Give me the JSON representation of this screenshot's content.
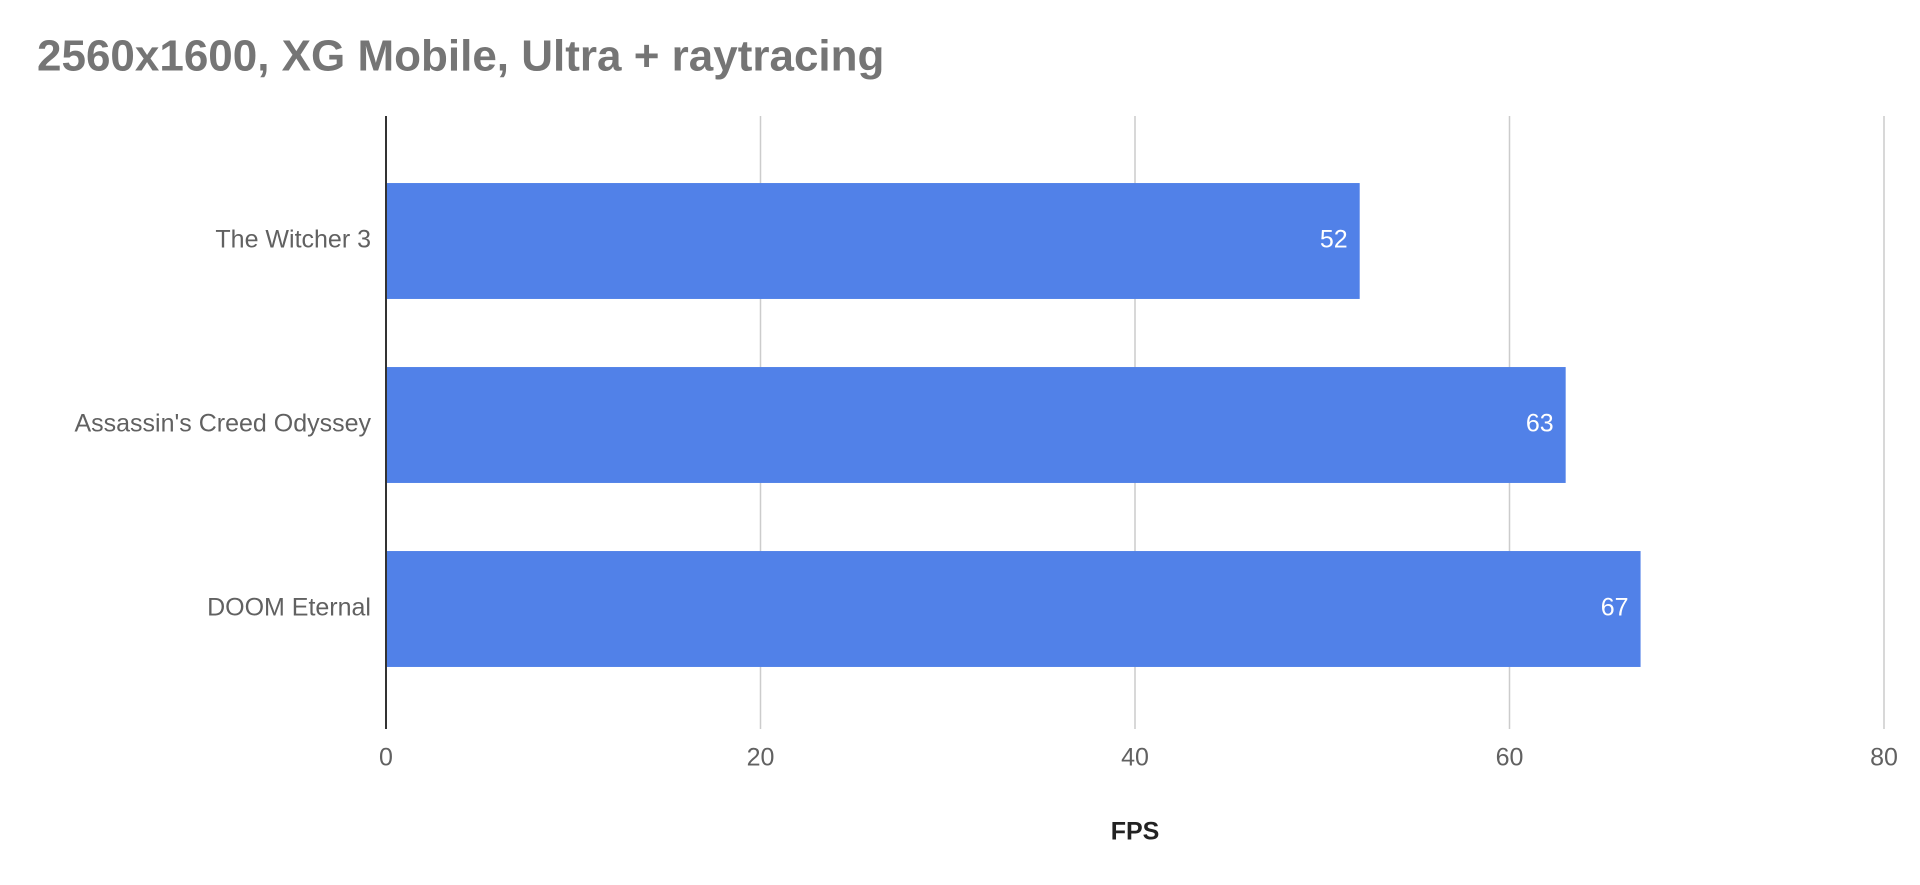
{
  "chart_data": {
    "type": "bar",
    "orientation": "horizontal",
    "title": "2560x1600, XG Mobile, Ultra + raytracing",
    "x_label": "FPS",
    "categories": [
      "The Witcher 3",
      "Assassin's Creed Odyssey",
      "DOOM Eternal"
    ],
    "values": [
      52,
      63,
      67
    ],
    "color": "#5181e8",
    "xlim": [
      0,
      80
    ],
    "xticks": [
      0,
      20,
      40,
      60,
      80
    ],
    "grid": true
  }
}
